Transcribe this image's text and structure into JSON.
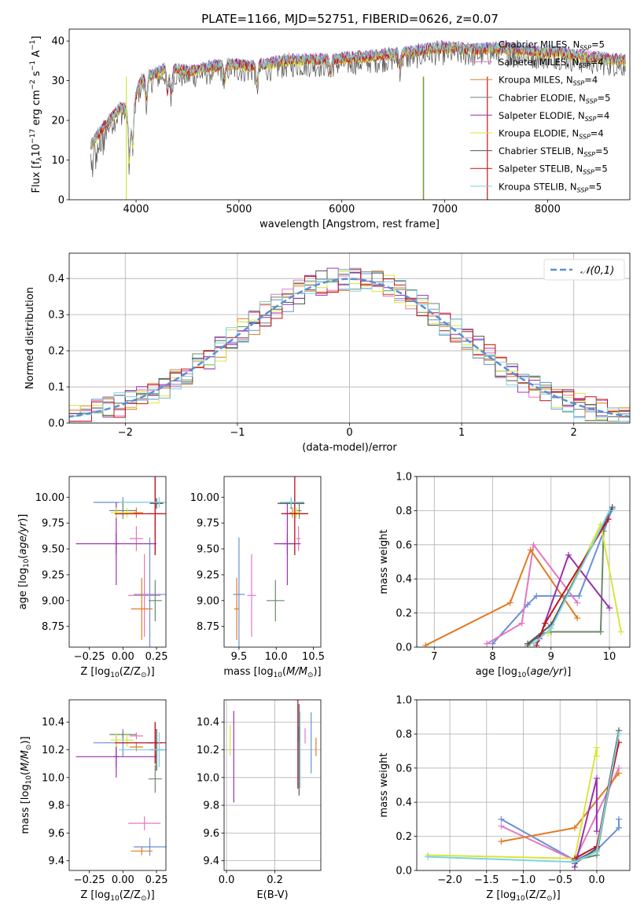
{
  "figure": {
    "title": "PLATE=1166, MJD=52751, FIBERID=0626, z=0.07"
  },
  "models": [
    {
      "name": "Chabrier MILES",
      "nssp": 5,
      "color": "#6a8fd8",
      "Z": [
        0.0,
        0.2
      ],
      "age": [
        9.95,
        9.06
      ],
      "mass": [
        10.25,
        9.5
      ],
      "ebv": 0.35,
      "Zerr": [
        0.22,
        0.12
      ],
      "ageErr": [
        0.05,
        0.55
      ],
      "massErr": [
        0.2,
        0.13
      ]
    },
    {
      "name": "Salpeter MILES",
      "nssp": 4,
      "color": "#e377c2",
      "Z": [
        0.1,
        0.16
      ],
      "age": [
        9.6,
        9.05
      ],
      "mass": [
        10.3,
        9.67
      ],
      "ebv": 0.325,
      "Zerr": [
        0.05,
        0.12
      ],
      "ageErr": [
        0.12,
        0.4
      ],
      "massErr": [
        0.05,
        0.1
      ]
    },
    {
      "name": "Kroupa MILES",
      "nssp": 4,
      "color": "#e07b22",
      "Z": [
        0.1,
        0.14
      ],
      "age": [
        9.85,
        8.92
      ],
      "mass": [
        10.22,
        9.47
      ],
      "ebv": 0.37,
      "Zerr": [
        0.05,
        0.08
      ],
      "ageErr": [
        0.05,
        0.3
      ],
      "massErr": [
        0.06,
        0.06
      ]
    },
    {
      "name": "Chabrier ELODIE",
      "nssp": 5,
      "color": "#6a8a6a",
      "Z": [
        0.0,
        0.24
      ],
      "age": [
        9.87,
        9.0
      ],
      "mass": [
        10.31,
        9.99
      ],
      "ebv": 0.3,
      "Zerr": [
        0.1,
        0.05
      ],
      "ageErr": [
        0.08,
        0.2
      ],
      "massErr": [
        0.05,
        0.2
      ]
    },
    {
      "name": "Salpeter ELODIE",
      "nssp": 4,
      "color": "#9b30b0",
      "Z": [
        -0.05,
        -0.05
      ],
      "age": [
        9.55,
        9.55
      ],
      "mass": [
        10.15,
        10.15
      ],
      "ebv": 0.03,
      "Zerr": [
        0.3,
        0.02
      ],
      "ageErr": [
        0.4,
        0.1
      ],
      "massErr": [
        0.3,
        0.15
      ]
    },
    {
      "name": "Kroupa ELODIE",
      "nssp": 4,
      "color": "#d7e63c",
      "Z": [
        -0.05,
        0.03
      ],
      "age": [
        9.85,
        9.85
      ],
      "mass": [
        10.27,
        10.27
      ],
      "ebv": 0.015,
      "Zerr": [
        0.04,
        0.05
      ],
      "ageErr": [
        0.05,
        0.05
      ],
      "massErr": [
        0.1,
        0.1
      ]
    },
    {
      "name": "Chabrier STELIB",
      "nssp": 5,
      "color": "#555555",
      "Z": [
        0.25,
        0.25
      ],
      "age": [
        9.94,
        9.94
      ],
      "mass": [
        10.2,
        10.2
      ],
      "ebv": 0.3,
      "Zerr": [
        0.05,
        0.05
      ],
      "ageErr": [
        0.05,
        0.05
      ],
      "massErr": [
        0.3,
        0.3
      ]
    },
    {
      "name": "Salpeter STELIB",
      "nssp": 5,
      "color": "#c0141c",
      "Z": [
        0.24,
        0.24
      ],
      "age": [
        9.84,
        9.84
      ],
      "mass": [
        10.25,
        10.25
      ],
      "ebv": 0.295,
      "Zerr": [
        0.3,
        0.05
      ],
      "ageErr": [
        0.4,
        0.4
      ],
      "massErr": [
        0.3,
        0.3
      ]
    },
    {
      "name": "Kroupa STELIB",
      "nssp": 5,
      "color": "#7ed3e0",
      "Z": [
        0.27,
        0.27
      ],
      "age": [
        9.95,
        9.95
      ],
      "mass": [
        10.2,
        10.2
      ],
      "ebv": 0.305,
      "Zerr": [
        0.3,
        0.05
      ],
      "ageErr": [
        0.05,
        0.05
      ],
      "massErr": [
        0.25,
        0.25
      ]
    }
  ],
  "chart_data": [
    {
      "type": "line",
      "id": "spectrum",
      "title": "PLATE=1166, MJD=52751, FIBERID=0626, z=0.07",
      "xlabel": "wavelength [Angstrom, rest frame]",
      "ylabel": "Flux [f_λ 10^-17 erg cm^-2 s^-1 A^-1]",
      "xlim": [
        3350,
        8800
      ],
      "ylim": [
        0,
        43
      ],
      "xticks": [
        4000,
        5000,
        6000,
        7000,
        8000
      ],
      "yticks": [
        0,
        10,
        20,
        30,
        40
      ],
      "continuum": {
        "x": [
          3550,
          3650,
          3750,
          3850,
          3950,
          4050,
          4150,
          4300,
          4500,
          4700,
          4900,
          5100,
          5300,
          5500,
          5700,
          5900,
          6100,
          6300,
          6500,
          6700,
          6900,
          7100,
          7300,
          7500,
          7700,
          7900,
          8100,
          8300,
          8500,
          8700
        ],
        "y": [
          13,
          17,
          20,
          23,
          22,
          30,
          31,
          33,
          32,
          33,
          34,
          33.5,
          34,
          35,
          35,
          35,
          35.5,
          36,
          36.5,
          37,
          38,
          38,
          37.5,
          38,
          37.5,
          37,
          37,
          36,
          35.5,
          35
        ]
      },
      "absorptions": [
        [
          3934,
          12
        ],
        [
          3968,
          10
        ],
        [
          4102,
          5
        ],
        [
          4305,
          6
        ],
        [
          4341,
          6
        ],
        [
          4861,
          4
        ],
        [
          5175,
          5
        ],
        [
          5890,
          3
        ],
        [
          6563,
          3
        ]
      ],
      "legend": "top-right",
      "grid": false
    },
    {
      "type": "histogram",
      "id": "residuals",
      "xlabel": "(data-model)/error",
      "ylabel": "Normed distribution",
      "xlim": [
        -2.5,
        2.5
      ],
      "ylim": [
        0,
        0.47
      ],
      "xticks": [
        -2,
        -1,
        0,
        1,
        2
      ],
      "yticks": [
        0.0,
        0.1,
        0.2,
        0.3,
        0.4
      ],
      "bin_width": 0.1,
      "reference": {
        "label": "𝒩(0,1)",
        "mean": 0,
        "sigma": 1,
        "color": "#5b8ed6"
      },
      "legend": "top-right",
      "grid": true
    },
    {
      "type": "scatter",
      "id": "Z-age",
      "xlabel": "Z [log10(Z/Z⊙)]",
      "ylabel": "age [log10(age/yr)]",
      "xlim": [
        -0.4,
        0.32
      ],
      "ylim": [
        8.55,
        10.2
      ],
      "xticks": [
        -0.25,
        0.0,
        0.25
      ],
      "yticks": [
        8.75,
        9.0,
        9.25,
        9.5,
        9.75,
        10.0
      ]
    },
    {
      "type": "scatter",
      "id": "mass-age",
      "xlabel": "mass [log10(M/M⊙)]",
      "ylabel": "",
      "xlim": [
        9.3,
        10.6
      ],
      "ylim": [
        8.55,
        10.2
      ],
      "xticks": [
        9.5,
        10.0,
        10.5
      ],
      "yticks": [
        8.75,
        9.0,
        9.25,
        9.5,
        9.75,
        10.0
      ]
    },
    {
      "type": "line",
      "id": "age-weight",
      "xlabel": "age [log10(age/yr)]",
      "ylabel": "mass weight",
      "xlim": [
        6.7,
        10.35
      ],
      "ylim": [
        0,
        1
      ],
      "xticks": [
        7,
        8,
        9,
        10
      ],
      "yticks": [
        0.0,
        0.2,
        0.4,
        0.6,
        0.8,
        1.0
      ],
      "series": [
        {
          "model": 0,
          "x": [
            8.0,
            8.6,
            8.75,
            9.48,
            10.05
          ],
          "y": [
            0.02,
            0.25,
            0.3,
            0.3,
            0.81
          ]
        },
        {
          "model": 1,
          "x": [
            7.9,
            8.5,
            8.7,
            9.45
          ],
          "y": [
            0.02,
            0.14,
            0.6,
            0.26
          ]
        },
        {
          "model": 2,
          "x": [
            6.85,
            8.3,
            8.65,
            9.45
          ],
          "y": [
            0.01,
            0.26,
            0.57,
            0.17
          ]
        },
        {
          "model": 3,
          "x": [
            8.6,
            8.85,
            9.0,
            9.85,
            9.9
          ],
          "y": [
            0.01,
            0.08,
            0.09,
            0.09,
            0.68
          ]
        },
        {
          "model": 4,
          "x": [
            8.8,
            9.3,
            10.0
          ],
          "y": [
            0.05,
            0.54,
            0.23
          ]
        },
        {
          "model": 5,
          "x": [
            8.95,
            9.85,
            10.2
          ],
          "y": [
            0.08,
            0.72,
            0.09
          ]
        },
        {
          "model": 6,
          "x": [
            8.6,
            9.0,
            10.05
          ],
          "y": [
            0.02,
            0.13,
            0.82
          ]
        },
        {
          "model": 7,
          "x": [
            8.75,
            8.9,
            9.98
          ],
          "y": [
            0.01,
            0.14,
            0.75
          ]
        },
        {
          "model": 8,
          "x": [
            8.7,
            9.0,
            10.0
          ],
          "y": [
            0.02,
            0.11,
            0.8
          ]
        }
      ]
    },
    {
      "type": "scatter",
      "id": "Z-mass",
      "xlabel": "Z [log10(Z/Z⊙)]",
      "ylabel": "mass [log10(M/M⊙)]",
      "xlim": [
        -0.4,
        0.32
      ],
      "ylim": [
        9.33,
        10.56
      ],
      "xticks": [
        -0.25,
        0.0,
        0.25
      ],
      "yticks": [
        9.4,
        9.6,
        9.8,
        10.0,
        10.2,
        10.4
      ]
    },
    {
      "type": "scatter",
      "id": "ebv-mass",
      "xlabel": "E(B-V)",
      "ylabel": "",
      "xlim": [
        -0.01,
        0.39
      ],
      "ylim": [
        9.33,
        10.56
      ],
      "xticks": [
        0.0,
        0.2
      ],
      "yticks": [
        9.4,
        9.6,
        9.8,
        10.0,
        10.2,
        10.4
      ]
    },
    {
      "type": "line",
      "id": "Z-weight",
      "xlabel": "Z [log10(Z/Z⊙)]",
      "ylabel": "mass weight",
      "xlim": [
        -2.45,
        0.45
      ],
      "ylim": [
        0,
        1
      ],
      "xticks": [
        -2.0,
        -1.5,
        -1.0,
        -0.5,
        0.0
      ],
      "yticks": [
        0.0,
        0.2,
        0.4,
        0.6,
        0.8,
        1.0
      ],
      "series": [
        {
          "model": 0,
          "x": [
            -1.3,
            -0.3,
            0.0,
            0.3,
            0.3
          ],
          "y": [
            0.3,
            0.06,
            0.12,
            0.25,
            0.3
          ]
        },
        {
          "model": 1,
          "x": [
            -1.3,
            -0.3,
            0.3
          ],
          "y": [
            0.26,
            0.06,
            0.6
          ]
        },
        {
          "model": 2,
          "x": [
            -1.3,
            -0.3,
            0.3
          ],
          "y": [
            0.17,
            0.25,
            0.57
          ]
        },
        {
          "model": 3,
          "x": [
            -0.3,
            0.0,
            0.3
          ],
          "y": [
            0.06,
            0.09,
            0.8
          ]
        },
        {
          "model": 4,
          "x": [
            -0.3,
            0.0,
            0.0
          ],
          "y": [
            0.02,
            0.54,
            0.23
          ]
        },
        {
          "model": 5,
          "x": [
            -2.3,
            -0.3,
            0.0,
            0.0
          ],
          "y": [
            0.09,
            0.07,
            0.72,
            0.67
          ]
        },
        {
          "model": 6,
          "x": [
            -0.3,
            0.0,
            0.3
          ],
          "y": [
            0.04,
            0.13,
            0.82
          ]
        },
        {
          "model": 7,
          "x": [
            -0.3,
            0.0,
            0.3
          ],
          "y": [
            0.07,
            0.14,
            0.75
          ]
        },
        {
          "model": 8,
          "x": [
            -2.3,
            -0.3,
            0.0,
            0.3
          ],
          "y": [
            0.08,
            0.05,
            0.11,
            0.8
          ]
        }
      ]
    }
  ]
}
